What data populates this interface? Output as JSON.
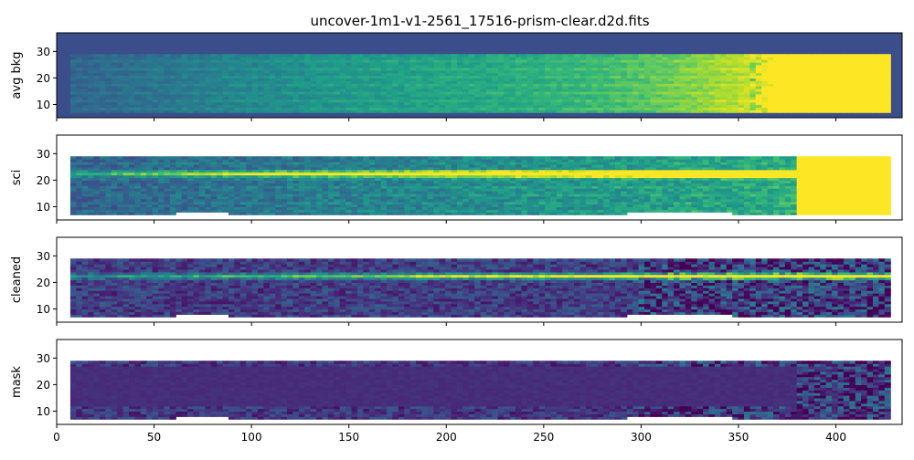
{
  "figure": {
    "title": "uncover-1m1-v1-2561_17516-prism-clear.d2d.fits"
  },
  "chart_data": {
    "type": "heatmap",
    "colormap": "viridis",
    "colors": {
      "background_fill": "#3b4d8a",
      "low": "#3f3f88",
      "mid": "#21918c",
      "high": "#fde725"
    },
    "xlim": [
      0,
      434
    ],
    "ylim": [
      5,
      37
    ],
    "x_ticks": [
      0,
      50,
      100,
      150,
      200,
      250,
      300,
      350,
      400
    ],
    "y_ticks": [
      10,
      20,
      30
    ],
    "data_x_range": [
      7,
      428
    ],
    "data_y_range": [
      7,
      29
    ],
    "trace_row": 22.5,
    "shared_x_axis": true,
    "panels": [
      {
        "name": "avg-bkg",
        "ylabel": "avg bkg",
        "background": "filled",
        "trace": false,
        "trend": "increasing with x, saturated above x≈350"
      },
      {
        "name": "sci",
        "ylabel": "sci",
        "background": "white",
        "trace": true,
        "trend": "bright trace at y≈22, saturated above x≈380"
      },
      {
        "name": "cleaned",
        "ylabel": "cleaned",
        "background": "white",
        "trace": true,
        "trend": "background-subtracted, bright trace at y≈22"
      },
      {
        "name": "mask",
        "ylabel": "mask",
        "background": "white",
        "trace": false,
        "trend": "masked trace region shown as uniform low band"
      }
    ]
  }
}
